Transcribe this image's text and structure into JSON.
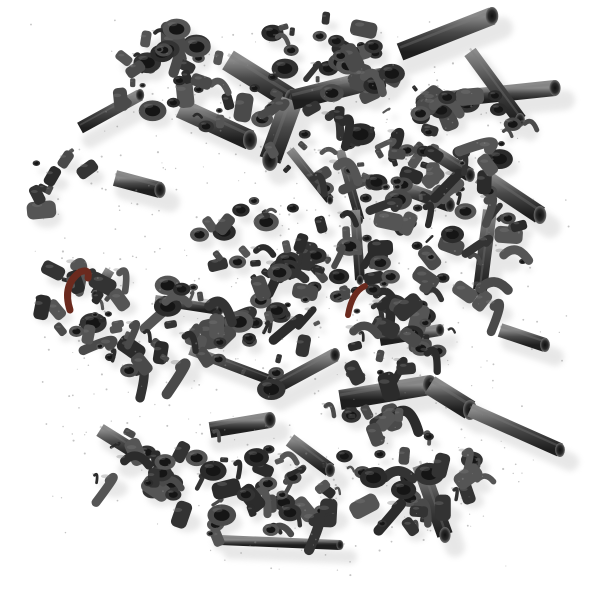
{
  "scene": {
    "subject": "scattered-pipe-fittings",
    "background_color": "#ffffff",
    "palette": {
      "pipe_dark": "#2b2b2b",
      "pipe_mid": "#4a4a4a",
      "pipe_light": "#7a7a7a",
      "shadow": "#bdbdbd",
      "rust": "#6b2a1e"
    }
  }
}
